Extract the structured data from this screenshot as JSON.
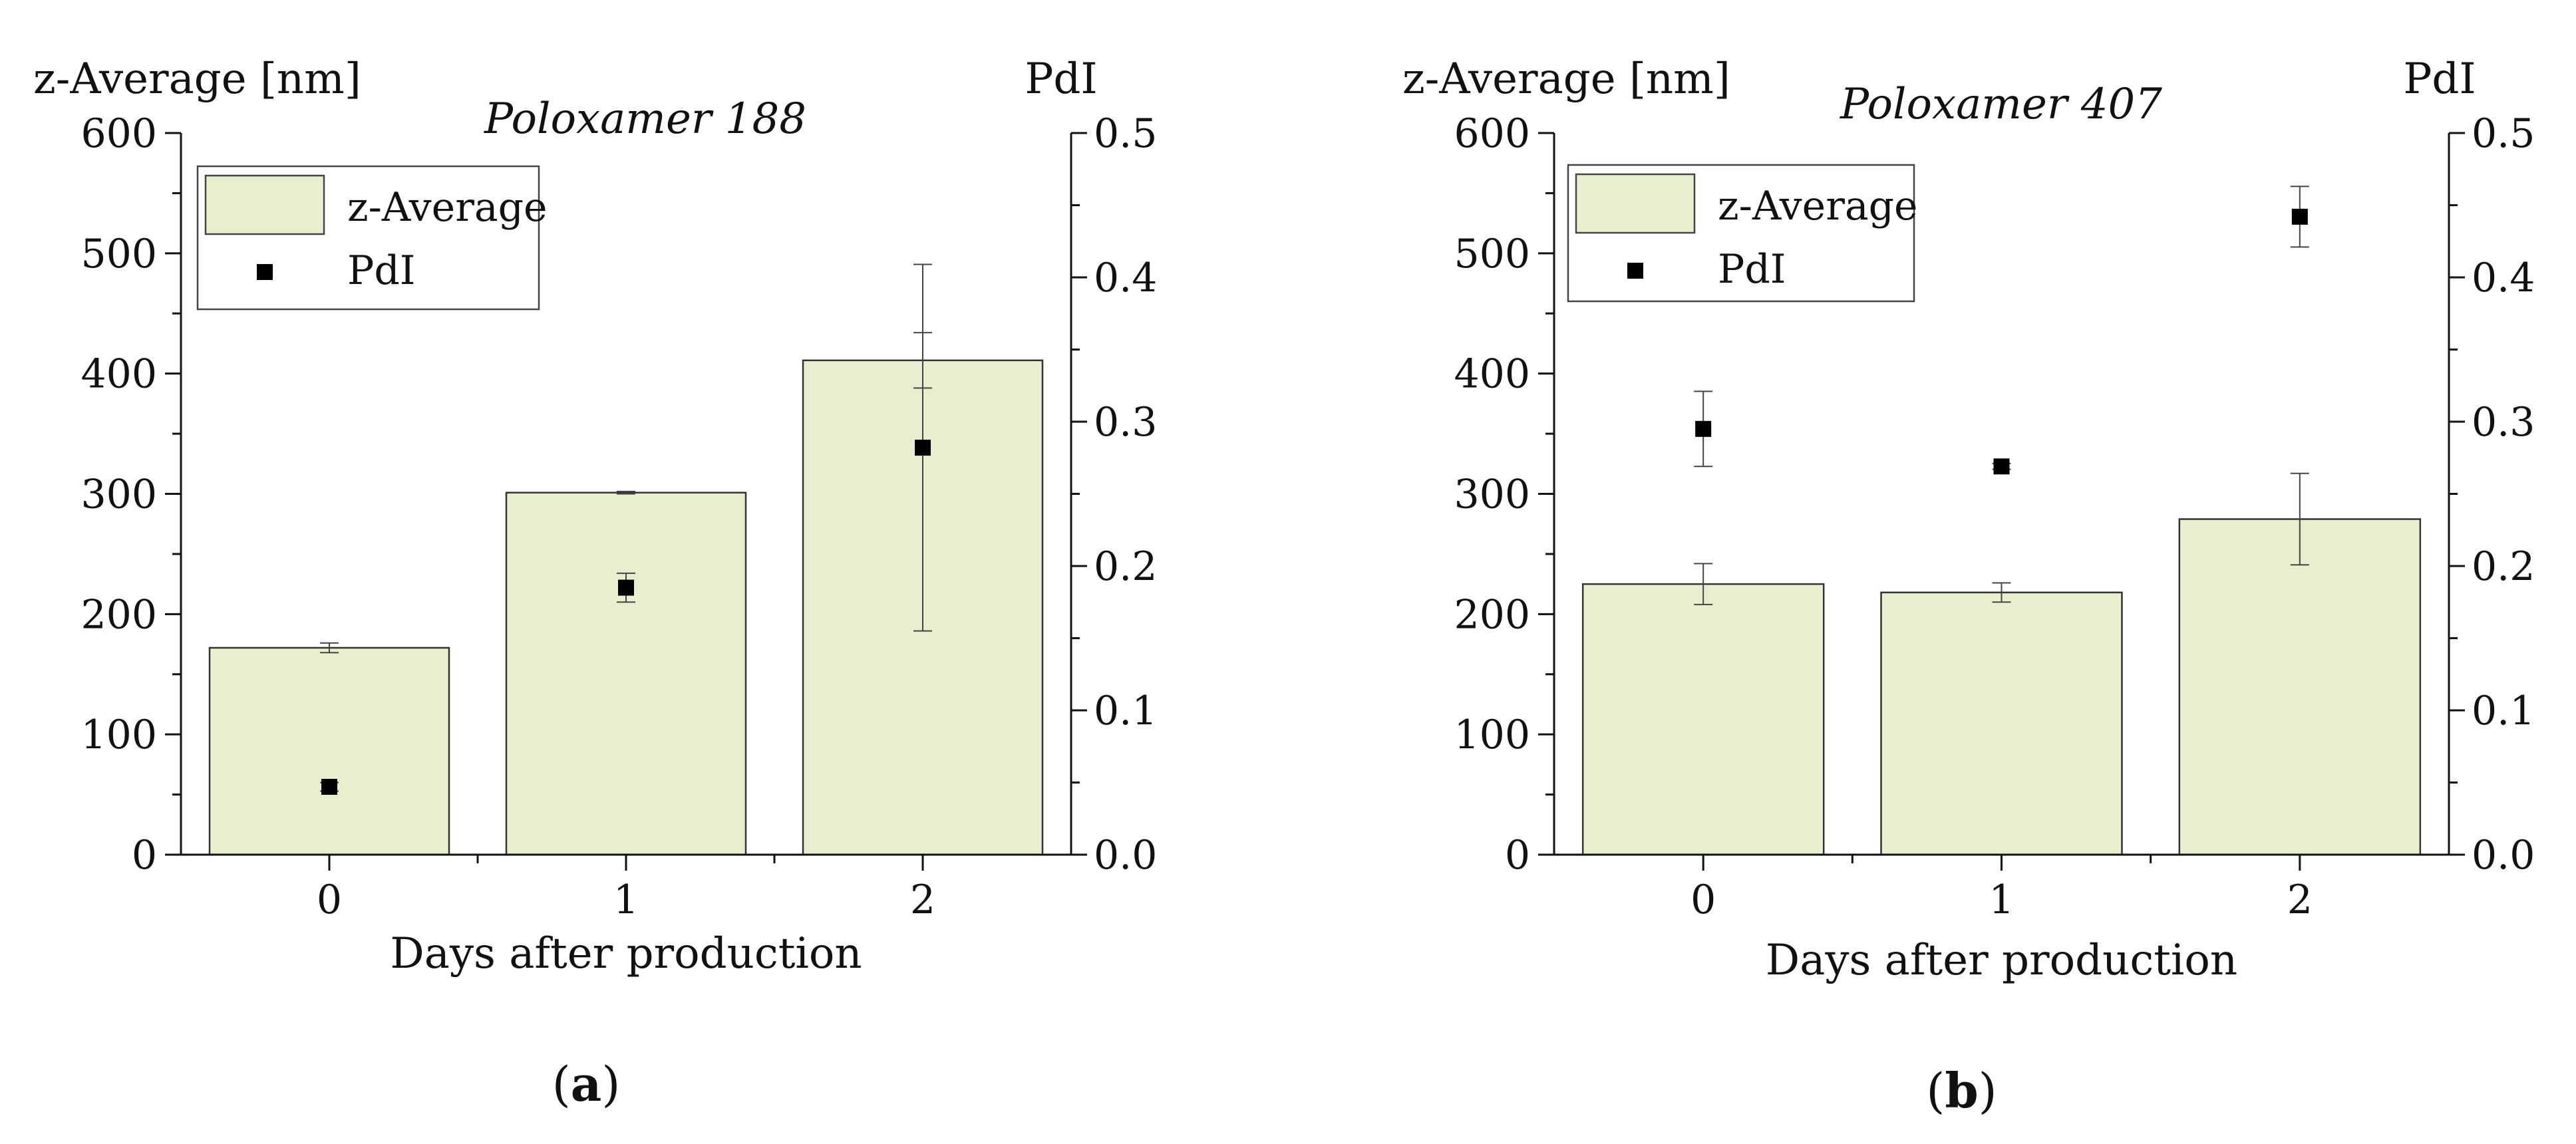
{
  "chart_data": [
    {
      "panel_label": "(a)",
      "panel_letter": "a",
      "type": "bar",
      "title": "Poloxamer 188",
      "xlabel": "Days after production",
      "ylabel_left": "z-Average [nm]",
      "ylabel_right": "PdI",
      "categories": [
        "0",
        "1",
        "2"
      ],
      "ylim_left": [
        0,
        600
      ],
      "ylim_right": [
        0.0,
        0.5
      ],
      "yticks_left": [
        "0",
        "100",
        "200",
        "300",
        "400",
        "500",
        "600"
      ],
      "yticks_right": [
        "0.0",
        "0.1",
        "0.2",
        "0.3",
        "0.4",
        "0.5"
      ],
      "legend": [
        "z-Average",
        "PdI"
      ],
      "legend_position": "top-left",
      "series": [
        {
          "name": "z-Average",
          "axis": "left",
          "type": "bar",
          "values": [
            172,
            301,
            411
          ],
          "errors": [
            4,
            1,
            23
          ],
          "color": "#e8efcf"
        },
        {
          "name": "PdI",
          "axis": "right",
          "type": "scatter",
          "values": [
            0.047,
            0.185,
            0.282
          ],
          "errors": [
            0.003,
            0.01,
            0.127
          ],
          "color": "#000000"
        }
      ]
    },
    {
      "panel_label": "(b)",
      "panel_letter": "b",
      "type": "bar",
      "title": "Poloxamer 407",
      "xlabel": "Days after production",
      "ylabel_left": "z-Average [nm]",
      "ylabel_right": "PdI",
      "categories": [
        "0",
        "1",
        "2"
      ],
      "ylim_left": [
        0,
        600
      ],
      "ylim_right": [
        0.0,
        0.5
      ],
      "yticks_left": [
        "0",
        "100",
        "200",
        "300",
        "400",
        "500",
        "600"
      ],
      "yticks_right": [
        "0.0",
        "0.1",
        "0.2",
        "0.3",
        "0.4",
        "0.5"
      ],
      "legend": [
        "z-Average",
        "PdI"
      ],
      "legend_position": "top-left",
      "series": [
        {
          "name": "z-Average",
          "axis": "left",
          "type": "bar",
          "values": [
            225,
            218,
            279
          ],
          "errors": [
            17,
            8,
            38
          ],
          "color": "#e8efcf"
        },
        {
          "name": "PdI",
          "axis": "right",
          "type": "scatter",
          "values": [
            0.295,
            0.269,
            0.442
          ],
          "errors": [
            0.026,
            0.002,
            0.021
          ],
          "color": "#000000"
        }
      ]
    }
  ]
}
